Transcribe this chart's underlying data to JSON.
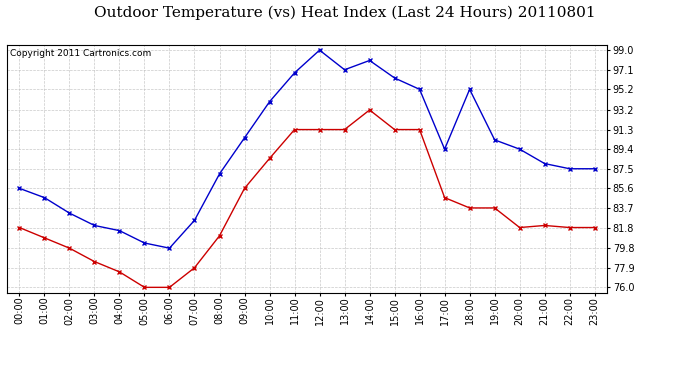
{
  "title": "Outdoor Temperature (vs) Heat Index (Last 24 Hours) 20110801",
  "copyright": "Copyright 2011 Cartronics.com",
  "x_labels": [
    "00:00",
    "01:00",
    "02:00",
    "03:00",
    "04:00",
    "05:00",
    "06:00",
    "07:00",
    "08:00",
    "09:00",
    "10:00",
    "11:00",
    "12:00",
    "13:00",
    "14:00",
    "15:00",
    "16:00",
    "17:00",
    "18:00",
    "19:00",
    "20:00",
    "21:00",
    "22:00",
    "23:00"
  ],
  "blue_data": [
    85.6,
    84.7,
    83.2,
    82.0,
    81.5,
    80.3,
    79.8,
    82.5,
    87.0,
    90.5,
    94.0,
    96.8,
    99.0,
    97.1,
    98.0,
    96.3,
    95.2,
    89.4,
    95.2,
    90.3,
    89.4,
    88.0,
    87.5,
    87.5
  ],
  "red_data": [
    81.8,
    80.8,
    79.8,
    78.5,
    77.5,
    76.0,
    76.0,
    77.9,
    81.0,
    85.6,
    88.5,
    91.3,
    91.3,
    91.3,
    93.2,
    91.3,
    91.3,
    84.7,
    83.7,
    83.7,
    81.8,
    82.0,
    81.8,
    81.8
  ],
  "blue_color": "#0000CC",
  "red_color": "#CC0000",
  "background_color": "#FFFFFF",
  "grid_color": "#BBBBBB",
  "y_ticks": [
    76.0,
    77.9,
    79.8,
    81.8,
    83.7,
    85.6,
    87.5,
    89.4,
    91.3,
    93.2,
    95.2,
    97.1,
    99.0
  ],
  "y_min": 75.5,
  "y_max": 99.5,
  "title_fontsize": 11,
  "copyright_fontsize": 6.5,
  "tick_fontsize": 7,
  "marker_size": 3.5,
  "line_width": 1.0
}
